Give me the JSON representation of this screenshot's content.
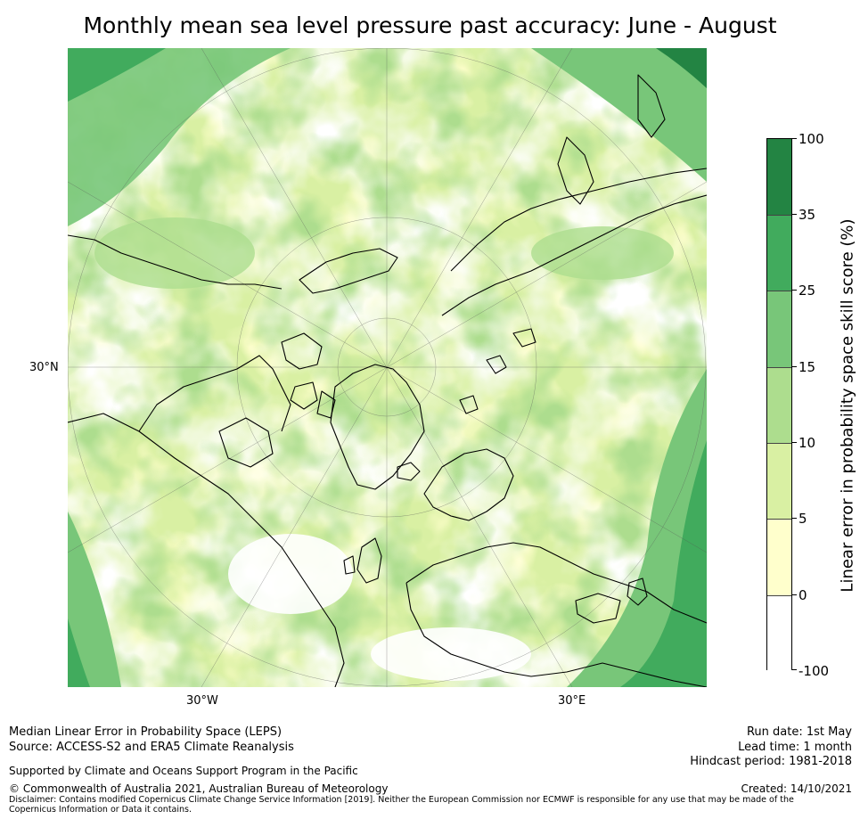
{
  "title": "Monthly mean sea level pressure past accuracy: June - August",
  "map": {
    "lat_labels": [
      "30°N"
    ],
    "lon_labels": [
      "30°W",
      "30°E"
    ]
  },
  "colorbar": {
    "title": "Linear error in probability space skill score (%)",
    "ticks": [
      "100",
      "35",
      "25",
      "15",
      "10",
      "5",
      "0",
      "-100"
    ],
    "colors": [
      "#238443",
      "#41ab5d",
      "#78c679",
      "#addd8e",
      "#d9f0a3",
      "#ffffcc",
      "#ffffff"
    ]
  },
  "footer": {
    "line1": "Median Linear Error in Probability Space (LEPS)",
    "line2": "Source: ACCESS-S2 and ERA5 Climate Reanalysis",
    "support": "Supported by Climate and Oceans Support Program in the Pacific",
    "copyright": "© Commonwealth of Australia 2021, Australian Bureau of Meteorology",
    "disclaimer": "Disclaimer: Contains modified Copernicus Climate Change Service Information [2019]. Neither the European Commission nor ECMWF is responsible for any use that may be made of the Copernicus Information or Data it contains.",
    "run_date": "Run date: 1st May",
    "lead_time": "Lead time: 1 month",
    "hindcast": "Hindcast period: 1981-2018",
    "created": "Created: 14/10/2021"
  }
}
